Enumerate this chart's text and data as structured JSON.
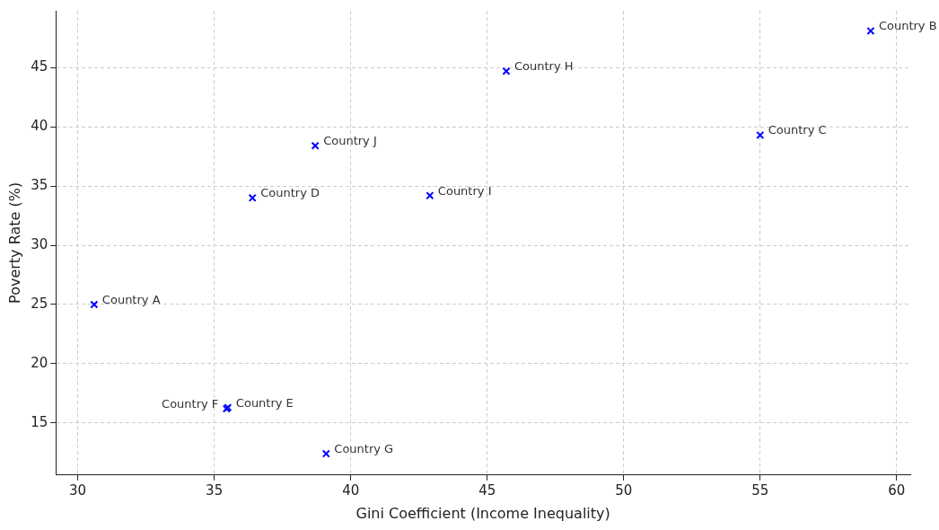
{
  "chart_data": {
    "type": "scatter",
    "xlabel": "Gini Coefficient (Income Inequality)",
    "ylabel": "Poverty Rate (%)",
    "x": [
      30.6,
      59.05,
      55.0,
      36.4,
      35.5,
      35.45,
      39.1,
      45.7,
      42.9,
      38.7
    ],
    "values": [
      25.0,
      48.1,
      39.3,
      34.0,
      16.3,
      16.2,
      12.4,
      44.7,
      34.2,
      38.4
    ],
    "color": "#0000ff",
    "marker": "cross",
    "grid": true,
    "legend": false,
    "xlim": [
      29.2,
      60.5
    ],
    "xticks": [
      30,
      35,
      40,
      45,
      50,
      55,
      60
    ],
    "ylim": [
      10.6,
      49.8
    ],
    "yticks": [
      15,
      20,
      25,
      30,
      35,
      40,
      45
    ],
    "annotations": [
      {
        "text": "Country A",
        "x": 30.6,
        "y": 25.0
      },
      {
        "text": "Country B",
        "x": 59.05,
        "y": 48.1
      },
      {
        "text": "Country C",
        "x": 55.0,
        "y": 39.3
      },
      {
        "text": "Country D",
        "x": 36.4,
        "y": 34.0
      },
      {
        "text": "Country E",
        "x": 35.5,
        "y": 16.3
      },
      {
        "text": "Country F",
        "x": 35.45,
        "y": 16.2
      },
      {
        "text": "Country G",
        "x": 39.1,
        "y": 12.4
      },
      {
        "text": "Country H",
        "x": 45.7,
        "y": 44.7
      },
      {
        "text": "Country I",
        "x": 42.9,
        "y": 34.2
      },
      {
        "text": "Country J",
        "x": 38.7,
        "y": 38.4
      }
    ]
  }
}
